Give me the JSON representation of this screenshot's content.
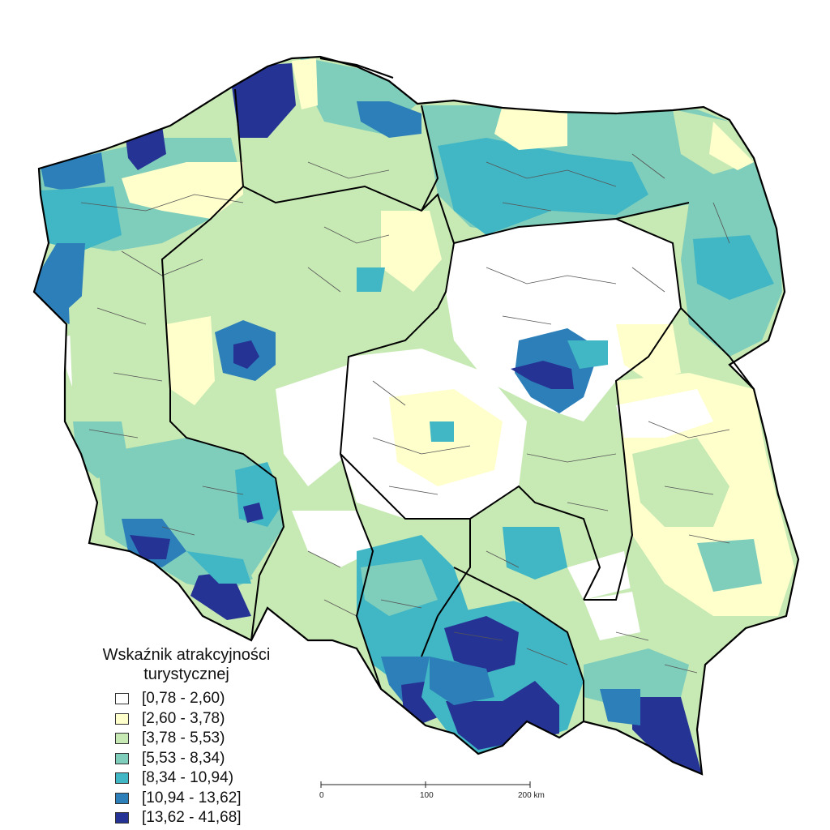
{
  "legend": {
    "title_line1": "Wskaźnik atrakcyjności",
    "title_line2": "turystycznej",
    "classes": [
      {
        "label": "[0,78 - 2,60)",
        "color": "#ffffff"
      },
      {
        "label": "[2,60 - 3,78)",
        "color": "#ffffcc"
      },
      {
        "label": "[3,78 - 5,53)",
        "color": "#c7e9b4"
      },
      {
        "label": "[5,53 - 8,34)",
        "color": "#7fcdbb"
      },
      {
        "label": "[8,34 - 10,94)",
        "color": "#41b6c4"
      },
      {
        "label": "[10,94 - 13,62]",
        "color": "#2c7fb8"
      },
      {
        "label": "[13,62 - 41,68]",
        "color": "#253494"
      }
    ]
  },
  "scalebar": {
    "label_0": "0",
    "label_100": "100",
    "label_200": "200 km"
  },
  "colors": {
    "border_thin": "#555555",
    "border_thick": "#000000"
  }
}
